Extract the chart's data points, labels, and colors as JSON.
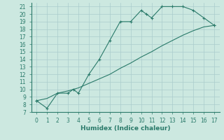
{
  "title": "",
  "xlabel": "Humidex (Indice chaleur)",
  "bg_color": "#cce8e0",
  "grid_color": "#aacccc",
  "line_color": "#2a7a6a",
  "xlim": [
    -0.5,
    17.5
  ],
  "ylim": [
    7,
    21.5
  ],
  "xticks": [
    0,
    1,
    2,
    3,
    4,
    5,
    6,
    7,
    8,
    9,
    10,
    11,
    12,
    13,
    14,
    15,
    16,
    17
  ],
  "yticks": [
    7,
    8,
    9,
    10,
    11,
    12,
    13,
    14,
    15,
    16,
    17,
    18,
    19,
    20,
    21
  ],
  "curve1_x": [
    0,
    1,
    2,
    3,
    3.5,
    4,
    5,
    6,
    7,
    8,
    9,
    10,
    10.5,
    11,
    12,
    13,
    14,
    15,
    16,
    17
  ],
  "curve1_y": [
    8.5,
    7.5,
    9.5,
    9.5,
    10.0,
    9.5,
    12.0,
    14.0,
    16.5,
    19.0,
    19.0,
    20.5,
    20.0,
    19.5,
    21.0,
    21.0,
    21.0,
    20.5,
    19.5,
    18.5
  ],
  "curve2_x": [
    0,
    1,
    2,
    3,
    4,
    5,
    6,
    7,
    8,
    9,
    10,
    11,
    12,
    13,
    14,
    15,
    16,
    17
  ],
  "curve2_y": [
    8.5,
    8.8,
    9.5,
    9.8,
    10.2,
    10.8,
    11.4,
    12.0,
    12.8,
    13.5,
    14.3,
    15.0,
    15.8,
    16.5,
    17.2,
    17.8,
    18.3,
    18.5
  ],
  "marker": "+"
}
